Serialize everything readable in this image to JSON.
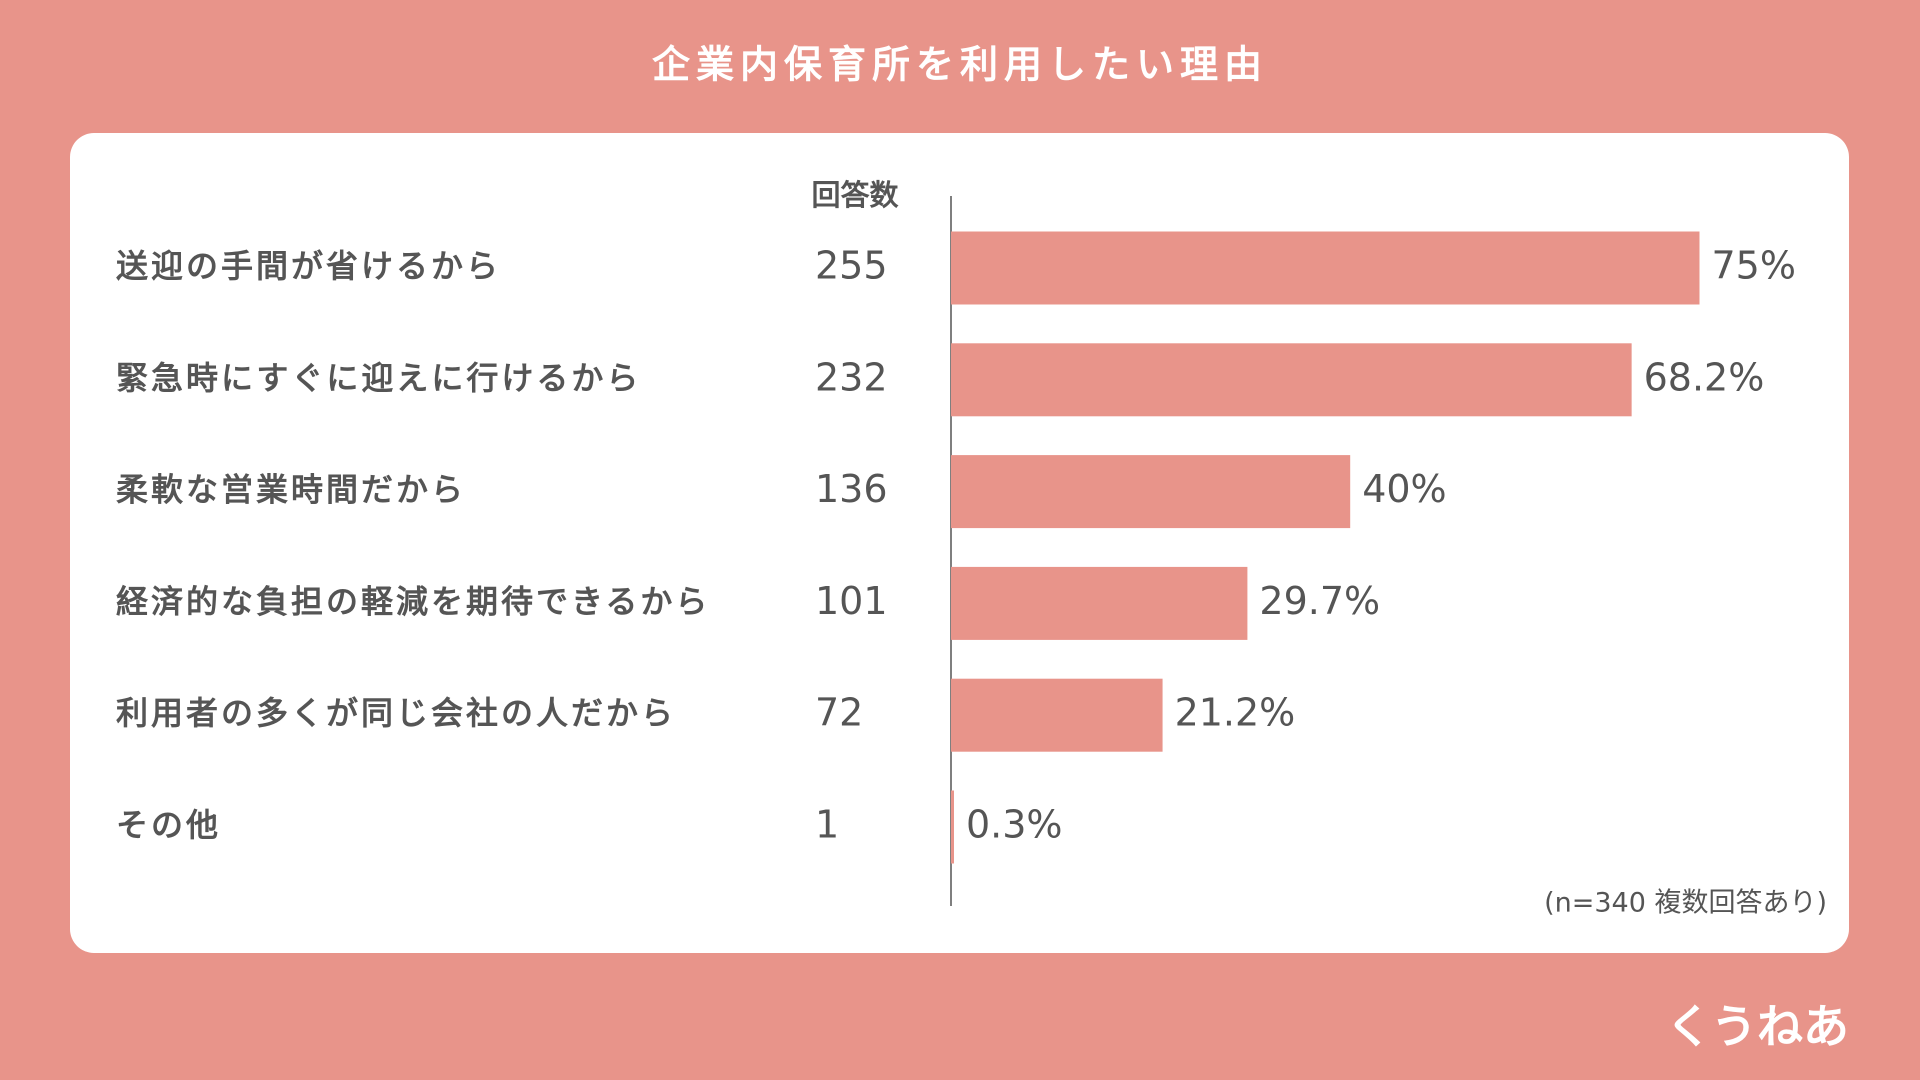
{
  "chart_data": {
    "type": "bar",
    "title": "企業内保育所を利用したい理由",
    "count_header": "回答数",
    "categories": [
      "送迎の手間が省けるから",
      "緊急時にすぐに迎えに行けるから",
      "柔軟な営業時間だから",
      "経済的な負担の軽減を期待できるから",
      "利用者の多くが同じ会社の人だから",
      "その他"
    ],
    "counts": [
      255,
      232,
      136,
      101,
      72,
      1
    ],
    "values": [
      75,
      68.2,
      40,
      29.7,
      21.2,
      0.3
    ],
    "value_labels": [
      "75%",
      "68.2%",
      "40%",
      "29.7%",
      "21.2%",
      "0.3%"
    ],
    "color": "#e8948a",
    "note": "(n=340 複数回答あり)"
  },
  "brand": "くうねあ"
}
